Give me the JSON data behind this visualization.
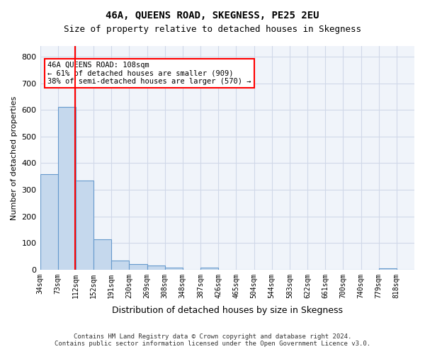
{
  "title": "46A, QUEENS ROAD, SKEGNESS, PE25 2EU",
  "subtitle": "Size of property relative to detached houses in Skegness",
  "xlabel": "Distribution of detached houses by size in Skegness",
  "ylabel": "Number of detached properties",
  "bin_labels": [
    "34sqm",
    "73sqm",
    "112sqm",
    "152sqm",
    "191sqm",
    "230sqm",
    "269sqm",
    "308sqm",
    "348sqm",
    "387sqm",
    "426sqm",
    "465sqm",
    "504sqm",
    "544sqm",
    "583sqm",
    "622sqm",
    "661sqm",
    "700sqm",
    "740sqm",
    "779sqm",
    "818sqm"
  ],
  "bar_values": [
    358,
    610,
    335,
    113,
    35,
    20,
    15,
    8,
    0,
    8,
    0,
    0,
    0,
    0,
    0,
    0,
    0,
    0,
    0,
    5,
    0
  ],
  "bar_color": "#c5d8ed",
  "bar_edge_color": "#6699cc",
  "grid_color": "#d0d8e8",
  "background_color": "#f0f4fa",
  "red_line_x": 1.97,
  "annotation_text": "46A QUEENS ROAD: 108sqm\n← 61% of detached houses are smaller (909)\n38% of semi-detached houses are larger (570) →",
  "annotation_box_color": "white",
  "annotation_box_edge_color": "red",
  "ylim": [
    0,
    840
  ],
  "yticks": [
    0,
    100,
    200,
    300,
    400,
    500,
    600,
    700,
    800
  ],
  "footer_line1": "Contains HM Land Registry data © Crown copyright and database right 2024.",
  "footer_line2": "Contains public sector information licensed under the Open Government Licence v3.0."
}
